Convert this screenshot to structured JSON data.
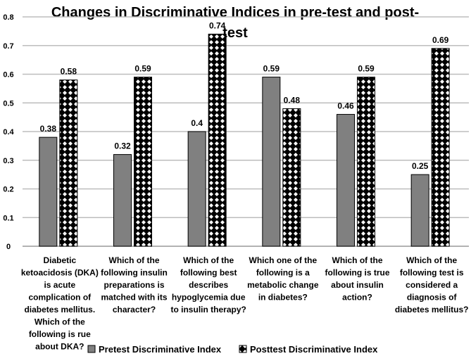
{
  "chart_data": {
    "type": "bar",
    "title": "Changes in Discriminative Indices in pre-test and post-test",
    "title_lines": [
      "Changes in Discriminative Indices in pre-test and post-",
      "test"
    ],
    "categories": [
      [
        "Diabetic",
        "ketoacidosis (DKA)",
        "is acute",
        "complication of",
        "diabetes mellitus.",
        "Which of the",
        "following is rue",
        "about DKA?"
      ],
      [
        "Which of the",
        "following insulin",
        "preparations is",
        "matched with its",
        "character?"
      ],
      [
        "Which of the",
        "following best",
        "describes",
        "hypoglycemia due",
        "to insulin therapy?"
      ],
      [
        "Which one of the",
        "following is a",
        "metabolic change",
        "in diabetes?"
      ],
      [
        "Which of the",
        "following is true",
        "about insulin",
        "action?"
      ],
      [
        "Which of the",
        "following test is",
        "considered a",
        "diagnosis of",
        "diabetes mellitus?"
      ]
    ],
    "series": [
      {
        "name": "Pretest Discriminative Index",
        "values": [
          0.38,
          0.32,
          0.4,
          0.59,
          0.46,
          0.25
        ],
        "labels": [
          "0.38",
          "0.32",
          "0.4",
          "0.59",
          "0.46",
          "0.25"
        ],
        "color": "#808080"
      },
      {
        "name": "Posttest Discriminative Index",
        "values": [
          0.58,
          0.59,
          0.74,
          0.48,
          0.59,
          0.69
        ],
        "labels": [
          "0.58",
          "0.59",
          "0.74",
          "0.48",
          "0.59",
          "0.69"
        ],
        "color": "#000000",
        "pattern": "white diamonds on black"
      }
    ],
    "ylim": [
      0,
      0.8
    ],
    "yticks": [
      "0",
      "0.1",
      "0.2",
      "0.3",
      "0.4",
      "0.5",
      "0.6",
      "0.7",
      "0.8"
    ],
    "grid": true,
    "legend": "bottom"
  }
}
